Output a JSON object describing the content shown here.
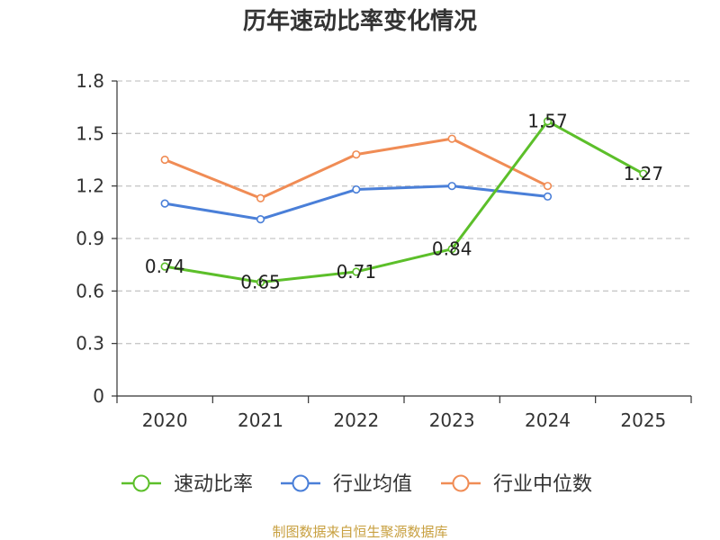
{
  "chart_data": {
    "type": "line",
    "title": "历年速动比率变化情况",
    "categories": [
      "2020",
      "2021",
      "2022",
      "2023",
      "2024",
      "2025"
    ],
    "y_ticks": [
      "0",
      "0.3",
      "0.6",
      "0.9",
      "1.2",
      "1.5",
      "1.8"
    ],
    "ylim": [
      0,
      1.8
    ],
    "grid": true,
    "legend_position": "bottom",
    "xlabel": "",
    "ylabel": "",
    "series": [
      {
        "name": "速动比率",
        "color": "#5cbf2a",
        "values": [
          0.74,
          0.65,
          0.71,
          0.84,
          1.57,
          1.27
        ],
        "labels": [
          "0.74",
          "0.65",
          "0.71",
          "0.84",
          "1.57",
          "1.27"
        ]
      },
      {
        "name": "行业均值",
        "color": "#4a7fd8",
        "values": [
          1.1,
          1.01,
          1.18,
          1.2,
          1.14,
          null
        ]
      },
      {
        "name": "行业中位数",
        "color": "#f08c55",
        "values": [
          1.35,
          1.13,
          1.38,
          1.47,
          1.2,
          null
        ]
      }
    ]
  },
  "footer": {
    "source": "制图数据来自恒生聚源数据库",
    "source_color": "#c8a040"
  }
}
